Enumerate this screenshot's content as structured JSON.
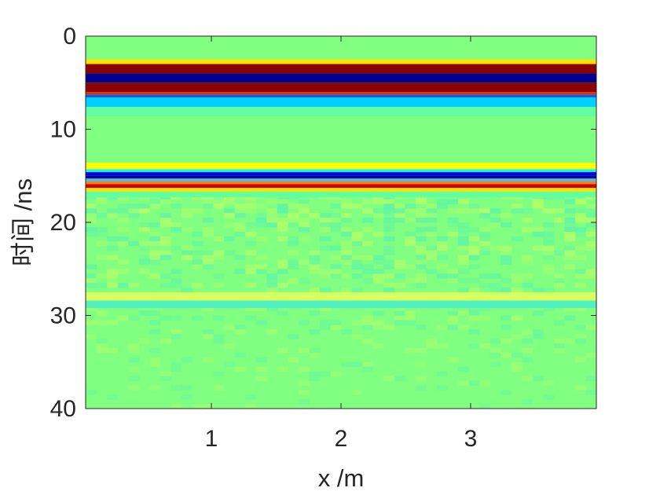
{
  "chart_data": {
    "type": "heatmap",
    "title": "",
    "xlabel": "x /m",
    "ylabel": "时间 /ns",
    "xlim": [
      0.03,
      3.97
    ],
    "ylim": [
      0,
      40
    ],
    "y_reversed": true,
    "grid": false,
    "colormap": "jet",
    "background_color": "#80FF80",
    "x_ticks": [
      1,
      2,
      3
    ],
    "x_tick_labels": [
      "1",
      "2",
      "3"
    ],
    "y_ticks": [
      0,
      10,
      20,
      30,
      40
    ],
    "y_tick_labels": [
      "0",
      "10",
      "20",
      "30",
      "40"
    ],
    "bands": [
      {
        "t_start": 2.5,
        "t_end": 3.0,
        "color": "#FFE000"
      },
      {
        "t_start": 3.0,
        "t_end": 4.0,
        "color": "#8B0000"
      },
      {
        "t_start": 4.0,
        "t_end": 5.0,
        "color": "#00008F"
      },
      {
        "t_start": 5.0,
        "t_end": 6.0,
        "color": "#8B0000"
      },
      {
        "t_start": 6.0,
        "t_end": 6.3,
        "color": "#E03000"
      },
      {
        "t_start": 6.3,
        "t_end": 6.6,
        "color": "#0060FF"
      },
      {
        "t_start": 6.6,
        "t_end": 7.6,
        "color": "#00D0FF"
      },
      {
        "t_start": 7.6,
        "t_end": 8.6,
        "color": "#60FFA0"
      },
      {
        "t_start": 13.6,
        "t_end": 14.3,
        "color": "#FFFF00"
      },
      {
        "t_start": 14.3,
        "t_end": 14.6,
        "color": "#00FFFF"
      },
      {
        "t_start": 14.6,
        "t_end": 15.0,
        "color": "#0000E0"
      },
      {
        "t_start": 15.0,
        "t_end": 15.3,
        "color": "#000090"
      },
      {
        "t_start": 15.3,
        "t_end": 15.6,
        "color": "#40C0FF"
      },
      {
        "t_start": 15.6,
        "t_end": 15.9,
        "color": "#FF8000"
      },
      {
        "t_start": 15.9,
        "t_end": 16.3,
        "color": "#D00000"
      },
      {
        "t_start": 16.3,
        "t_end": 16.7,
        "color": "#FFE000"
      },
      {
        "t_start": 16.7,
        "t_end": 17.3,
        "color": "#60FFA0"
      },
      {
        "t_start": 27.5,
        "t_end": 28.4,
        "color": "#D8FF60"
      },
      {
        "t_start": 28.4,
        "t_end": 29.2,
        "color": "#50F0C0"
      }
    ],
    "texture": {
      "t_start": 17.0,
      "t_end": 40.0,
      "strength": "decreasing-with-time"
    }
  }
}
